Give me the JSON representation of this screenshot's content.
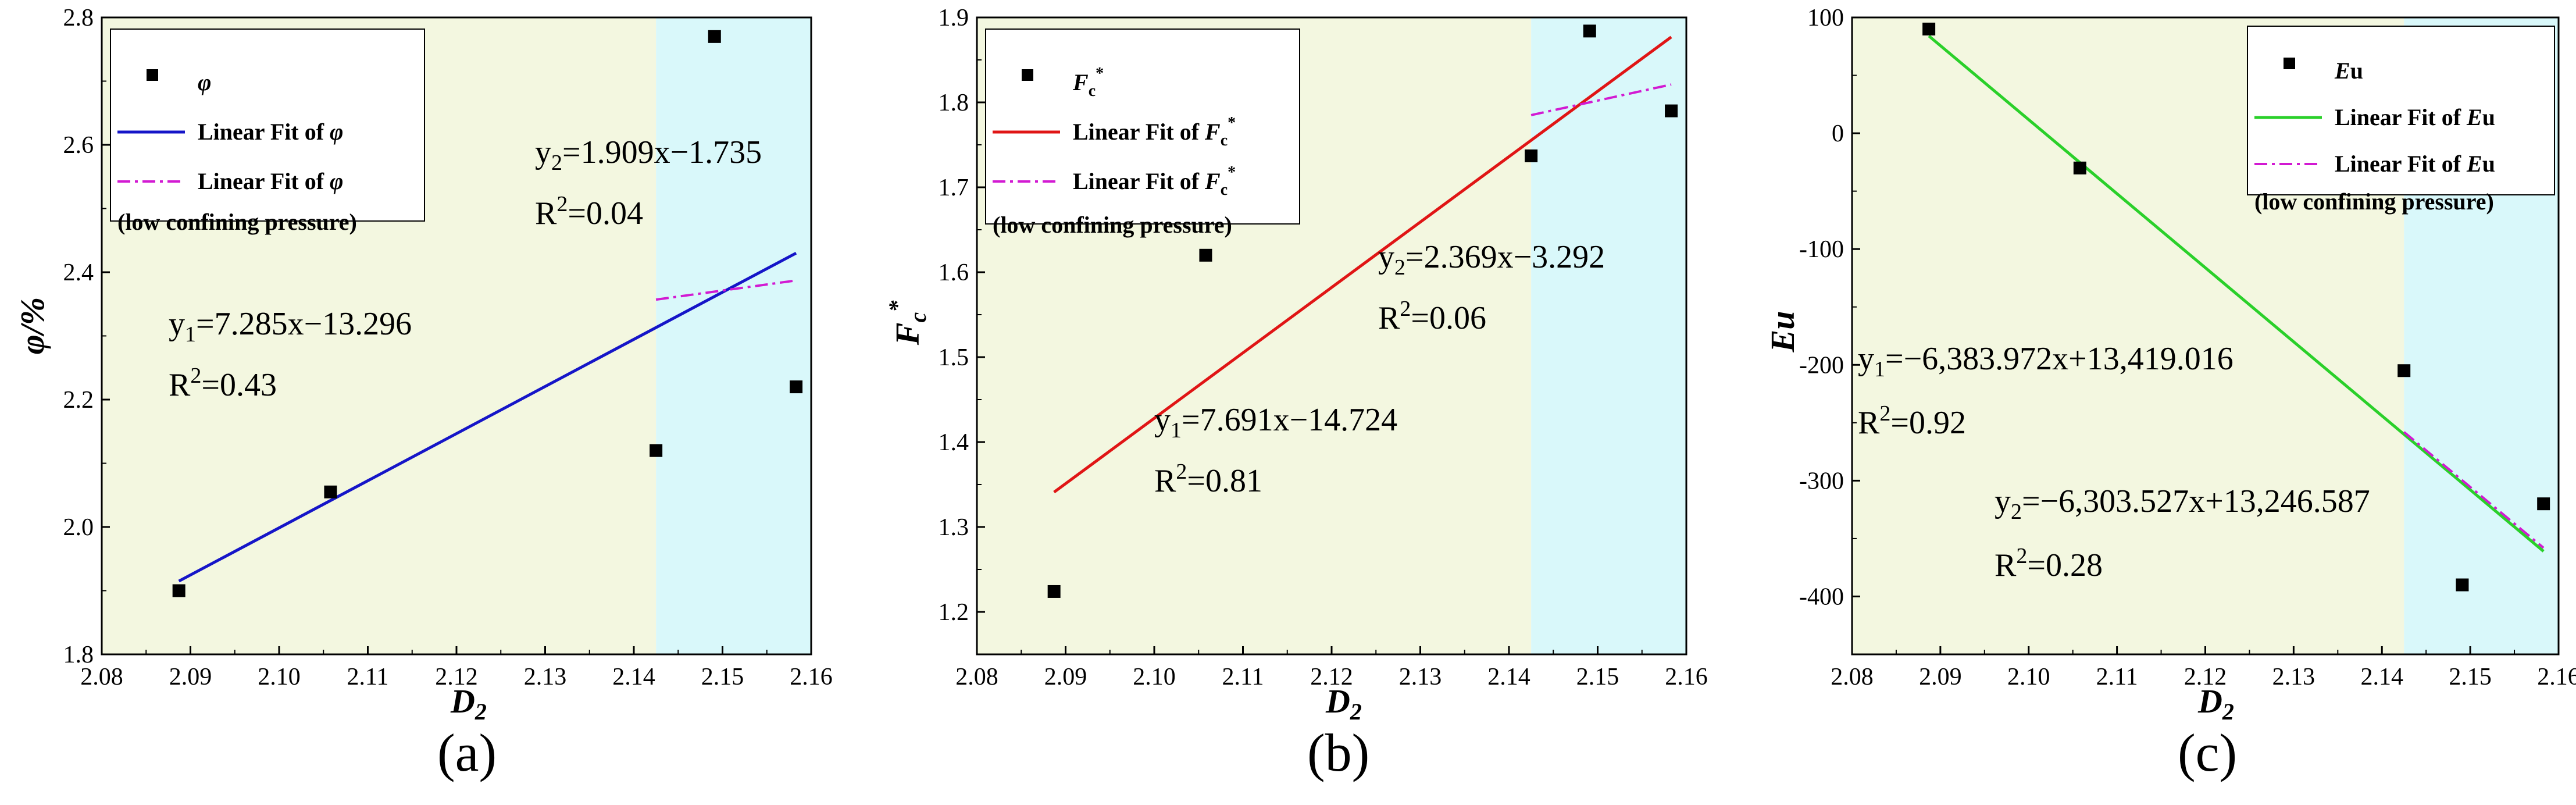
{
  "colors": {
    "zone_low": "#f3f7e0",
    "zone_high": "#d9f8fa",
    "points": "#000000"
  },
  "chart_data": [
    {
      "type": "scatter",
      "panel_label": "(a)",
      "xlabel": "D",
      "xlabel_sub": "2",
      "ylabel": "φ/%",
      "xlim": [
        2.08,
        2.16
      ],
      "ylim": [
        1.8,
        2.8
      ],
      "xticks": [
        "2.08",
        "2.09",
        "2.10",
        "2.11",
        "2.12",
        "2.13",
        "2.14",
        "2.15",
        "2.16"
      ],
      "yticks": [
        "1.8",
        "2.0",
        "2.2",
        "2.4",
        "2.6",
        "2.8"
      ],
      "zone_split": 2.1425,
      "points": [
        {
          "x": 2.0887,
          "y": 1.9
        },
        {
          "x": 2.1058,
          "y": 2.055
        },
        {
          "x": 2.1425,
          "y": 2.12
        },
        {
          "x": 2.1491,
          "y": 2.77
        },
        {
          "x": 2.1583,
          "y": 2.22
        }
      ],
      "fit_all": {
        "x": [
          2.0887,
          2.1583
        ],
        "y": [
          1.915,
          2.43
        ],
        "color": "#1515c8"
      },
      "fit_low": {
        "x": [
          2.1425,
          2.1583
        ],
        "y": [
          2.357,
          2.387
        ],
        "color": "#d21ad2"
      },
      "eq1": {
        "prefix": "y",
        "sub": "1",
        "rhs": "=7.285x−13.296",
        "r2_pre": "R",
        "r2_sup": "2",
        "r2_rhs": "=0.43"
      },
      "eq2": {
        "prefix": "y",
        "sub": "2",
        "rhs": "=1.909x−1.735",
        "r2_pre": "R",
        "r2_sup": "2",
        "r2_rhs": "=0.04"
      },
      "legend": {
        "symbol": "φ",
        "fit_prefix": "Linear Fit of ",
        "fit_symbol": "φ",
        "fit_low_prefix": "Linear Fit of ",
        "fit_low_symbol": "φ",
        "low_note": "(low confining pressure)"
      }
    },
    {
      "type": "scatter",
      "panel_label": "(b)",
      "xlabel": "D",
      "xlabel_sub": "2",
      "ylabel": "F",
      "ylabel_sub": "c",
      "ylabel_sup": "*",
      "xlim": [
        2.08,
        2.16
      ],
      "ylim": [
        1.15,
        1.9
      ],
      "xticks": [
        "2.08",
        "2.09",
        "2.10",
        "2.11",
        "2.12",
        "2.13",
        "2.14",
        "2.15",
        "2.16"
      ],
      "yticks": [
        "1.2",
        "1.3",
        "1.4",
        "1.5",
        "1.6",
        "1.7",
        "1.8",
        "1.9"
      ],
      "zone_split": 2.1425,
      "points": [
        {
          "x": 2.0887,
          "y": 1.224
        },
        {
          "x": 2.1058,
          "y": 1.62
        },
        {
          "x": 2.1425,
          "y": 1.737
        },
        {
          "x": 2.1491,
          "y": 1.884
        },
        {
          "x": 2.1583,
          "y": 1.79
        }
      ],
      "fit_all": {
        "x": [
          2.0887,
          2.1583
        ],
        "y": [
          1.341,
          1.877
        ],
        "color": "#e01515"
      },
      "fit_low": {
        "x": [
          2.1425,
          2.1583
        ],
        "y": [
          1.785,
          1.821
        ],
        "color": "#d21ad2"
      },
      "eq1": {
        "prefix": "y",
        "sub": "1",
        "rhs": "=7.691x−14.724",
        "r2_pre": "R",
        "r2_sup": "2",
        "r2_rhs": "=0.81"
      },
      "eq2": {
        "prefix": "y",
        "sub": "2",
        "rhs": "=2.369x−3.292",
        "r2_pre": "R",
        "r2_sup": "2",
        "r2_rhs": "=0.06"
      },
      "legend": {
        "symbol": "F",
        "symbol_sub": "c",
        "symbol_sup": "*",
        "fit_prefix": "Linear Fit of ",
        "fit_symbol": "F",
        "fit_low_prefix": "Linear Fit of ",
        "fit_low_symbol": "F",
        "low_note": "(low confining pressure)"
      }
    },
    {
      "type": "scatter",
      "panel_label": "(c)",
      "xlabel": "D",
      "xlabel_sub": "2",
      "ylabel": "Eu",
      "xlim": [
        2.08,
        2.16
      ],
      "ylim": [
        -450,
        100
      ],
      "xticks": [
        "2.08",
        "2.09",
        "2.10",
        "2.11",
        "2.12",
        "2.13",
        "2.14",
        "2.15",
        "2.16"
      ],
      "yticks": [
        "-400",
        "-300",
        "-200",
        "-100",
        "0",
        "100"
      ],
      "zone_split": 2.1425,
      "points": [
        {
          "x": 2.0887,
          "y": 90
        },
        {
          "x": 2.1058,
          "y": -30
        },
        {
          "x": 2.1425,
          "y": -205
        },
        {
          "x": 2.1491,
          "y": -390
        },
        {
          "x": 2.1583,
          "y": -320
        }
      ],
      "fit_all": {
        "x": [
          2.0887,
          2.1583
        ],
        "y": [
          84,
          -361
        ],
        "color": "#2ad02a"
      },
      "fit_low": {
        "x": [
          2.1425,
          2.1583
        ],
        "y": [
          -258,
          -358
        ],
        "color": "#d21ad2"
      },
      "eq1": {
        "prefix": "y",
        "sub": "1",
        "rhs": "=−6,383.972x+13,419.016",
        "r2_pre": "R",
        "r2_sup": "2",
        "r2_rhs": "=0.92"
      },
      "eq2": {
        "prefix": "y",
        "sub": "2",
        "rhs": "=−6,303.527x+13,246.587",
        "r2_pre": "R",
        "r2_sup": "2",
        "r2_rhs": "=0.28"
      },
      "legend": {
        "symbol": "E",
        "symbol_rest": "u",
        "fit_prefix": "Linear Fit of ",
        "fit_symbol": "E",
        "fit_symbol_rest": "u",
        "fit_low_prefix": "Linear Fit of ",
        "fit_low_symbol": "E",
        "fit_low_symbol_rest": "u",
        "low_note": "(low confining pressure)"
      }
    }
  ]
}
